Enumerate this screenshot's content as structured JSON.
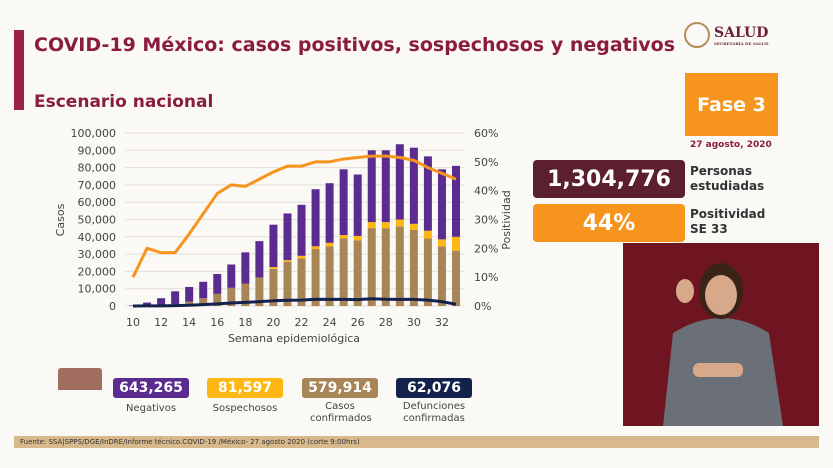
{
  "header": {
    "title": "COVID-19 México: casos positivos, sospechosos y negativos",
    "subtitle": "Escenario nacional",
    "logo": "SALUD",
    "logo_sub": "SECRETARÍA DE SALUD"
  },
  "fase": {
    "label": "Fase 3",
    "date": "27 agosto, 2020"
  },
  "kpis": [
    {
      "value": "1,304,776",
      "label1": "Personas",
      "label2": "estudiadas",
      "color": "#5c1f2d"
    },
    {
      "value": "44%",
      "label1": "Positividad",
      "label2": "SE 33",
      "color": "#f7941d"
    }
  ],
  "legend": [
    {
      "value": "643,265",
      "label": "Negativos",
      "color": "#5b2c8f"
    },
    {
      "value": "81,597",
      "label": "Sospechosos",
      "color": "#fdb813"
    },
    {
      "value": "579,914",
      "label": "Casos confirmados",
      "color": "#a88556"
    },
    {
      "value": "62,076",
      "label": "Defunciones confirmadas",
      "color": "#13214d"
    }
  ],
  "footer": "Fuente: SSA|SPPS/DGE/InDRE/Informe técnico.COVID-19 /México- 27 agosto 2020 (corte 9:00hrs)",
  "chart_data": {
    "type": "bar",
    "xlabel": "Semana epidemiológica",
    "ylabel": "Casos",
    "y2label": "Positividad",
    "ylim": [
      0,
      100000
    ],
    "y2lim": [
      0,
      60
    ],
    "yticks": [
      "0",
      "10,000",
      "20,000",
      "30,000",
      "40,000",
      "50,000",
      "60,000",
      "70,000",
      "80,000",
      "90,000",
      "100,000"
    ],
    "y2ticks": [
      "0%",
      "10%",
      "20%",
      "30%",
      "40%",
      "50%",
      "60%"
    ],
    "xticks": [
      "10",
      "12",
      "14",
      "16",
      "18",
      "20",
      "22",
      "24",
      "26",
      "28",
      "30",
      "32"
    ],
    "x": [
      10,
      11,
      12,
      13,
      14,
      15,
      16,
      17,
      18,
      19,
      20,
      21,
      22,
      23,
      24,
      25,
      26,
      27,
      28,
      29,
      30,
      31,
      32,
      33
    ],
    "series": [
      {
        "name": "Casos confirmados",
        "kind": "stacked-bar",
        "color": "#a88556",
        "values": [
          0,
          300,
          600,
          1000,
          2500,
          4500,
          7000,
          10500,
          13000,
          16500,
          21500,
          25500,
          27500,
          33000,
          34500,
          39000,
          38000,
          45000,
          45000,
          46000,
          44000,
          39000,
          34500,
          32000
        ]
      },
      {
        "name": "Sospechosos",
        "kind": "stacked-bar",
        "color": "#fdb813",
        "values": [
          0,
          0,
          0,
          0,
          0,
          0,
          0,
          0,
          0,
          0,
          1000,
          1000,
          1500,
          1500,
          2000,
          2000,
          2500,
          3500,
          3500,
          4000,
          3500,
          4500,
          4000,
          8000
        ]
      },
      {
        "name": "Negativos",
        "kind": "stacked-bar",
        "color": "#5b2c8f",
        "values": [
          300,
          1700,
          3900,
          7500,
          8500,
          9500,
          11500,
          13500,
          18000,
          21000,
          24500,
          27000,
          29500,
          33000,
          34500,
          38000,
          35500,
          41500,
          41500,
          43500,
          44000,
          43000,
          40500,
          41000
        ]
      },
      {
        "name": "Defunciones confirmadas",
        "kind": "line",
        "color": "#13214d",
        "values": [
          0,
          50,
          100,
          200,
          400,
          800,
          1200,
          1700,
          2100,
          2500,
          3000,
          3300,
          3400,
          3900,
          3800,
          3800,
          3700,
          4200,
          3900,
          3800,
          3800,
          3400,
          2500,
          1000
        ]
      },
      {
        "name": "Positividad",
        "kind": "line",
        "axis": "right",
        "color": "#f7941d",
        "values": [
          10,
          20,
          18.5,
          18.5,
          25,
          32,
          39,
          42,
          41.5,
          44,
          46.5,
          48.5,
          48.5,
          50,
          50,
          51,
          51.5,
          52,
          52,
          51.5,
          50.5,
          48,
          46,
          44
        ]
      }
    ]
  }
}
